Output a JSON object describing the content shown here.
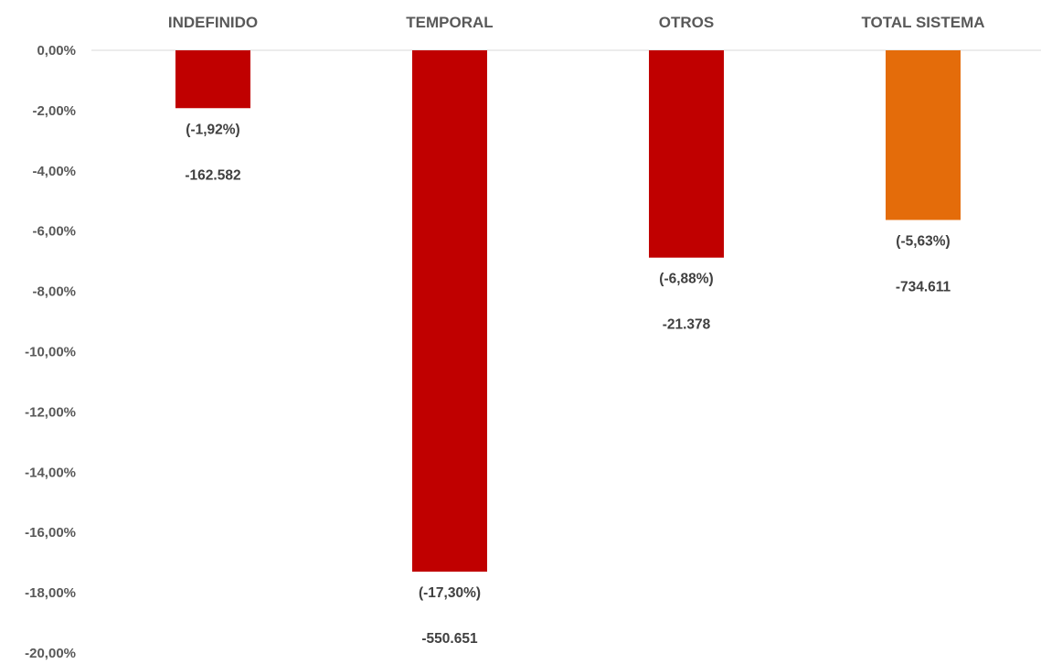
{
  "chart_data": {
    "type": "bar",
    "title": "",
    "xlabel": "",
    "ylabel": "",
    "categories": [
      "INDEFINIDO",
      "TEMPORAL",
      "OTROS",
      "TOTAL SISTEMA"
    ],
    "values": [
      -1.92,
      -17.3,
      -6.88,
      -5.63
    ],
    "value_unit": "%",
    "percent_labels": [
      "(-1,92%)",
      "(-17,30%)",
      "(-6,88%)",
      "(-5,63%)"
    ],
    "count_labels": [
      "-162.582",
      "-550.651",
      "-21.378",
      "-734.611"
    ],
    "ylim": [
      -20,
      0
    ],
    "y_ticks": [
      0,
      -2,
      -4,
      -6,
      -8,
      -10,
      -12,
      -14,
      -16,
      -18,
      -20
    ],
    "y_tick_labels": [
      "0,00%",
      "-2,00%",
      "-4,00%",
      "-6,00%",
      "-8,00%",
      "-10,00%",
      "-12,00%",
      "-14,00%",
      "-16,00%",
      "-18,00%",
      "-20,00%"
    ],
    "x_axis_position": "top",
    "grid": false,
    "legend": "none",
    "bar_colors": [
      "#c00000",
      "#c00000",
      "#c00000",
      "#e46c0a"
    ],
    "axis_line_color": "#d9d9d9",
    "text_color": "#595959",
    "label_color": "#404040"
  }
}
